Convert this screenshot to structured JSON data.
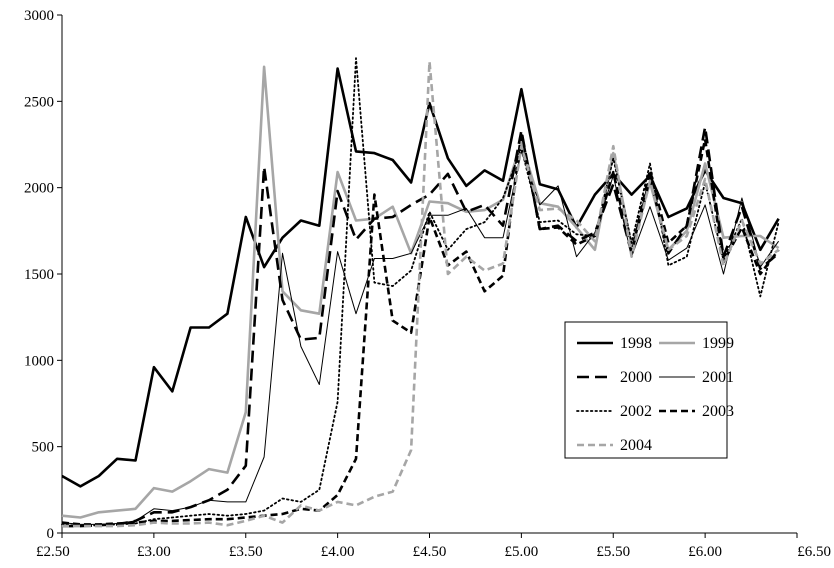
{
  "chart_data": {
    "type": "line",
    "title": "",
    "xlabel": "",
    "ylabel": "",
    "x": [
      2.5,
      2.6,
      2.7,
      2.8,
      2.9,
      3.0,
      3.1,
      3.2,
      3.3,
      3.4,
      3.5,
      3.6,
      3.7,
      3.8,
      3.9,
      4.0,
      4.1,
      4.2,
      4.3,
      4.4,
      4.5,
      4.6,
      4.7,
      4.8,
      4.9,
      5.0,
      5.1,
      5.2,
      5.3,
      5.4,
      5.5,
      5.6,
      5.7,
      5.8,
      5.9,
      6.0,
      6.1,
      6.2,
      6.3,
      6.4
    ],
    "xlim": [
      2.5,
      6.5
    ],
    "ylim": [
      0,
      3000
    ],
    "x_ticks": [
      2.5,
      3.0,
      3.5,
      4.0,
      4.5,
      5.0,
      5.5,
      6.0,
      6.5
    ],
    "x_tick_labels": [
      "£2.50",
      "£3.00",
      "£3.50",
      "£4.00",
      "£4.50",
      "£5.00",
      "£5.50",
      "£6.00",
      "£6.50"
    ],
    "y_ticks": [
      0,
      500,
      1000,
      1500,
      2000,
      2500,
      3000
    ],
    "y_tick_labels": [
      "0",
      "500",
      "1000",
      "1500",
      "2000",
      "2500",
      "3000"
    ],
    "grid": false,
    "legend_position": "right-center",
    "series": [
      {
        "name": "1998",
        "color": "#000000",
        "style": "solid-thick",
        "values": [
          330,
          270,
          330,
          430,
          420,
          960,
          820,
          1190,
          1190,
          1270,
          1830,
          1540,
          1710,
          1810,
          1780,
          2690,
          2210,
          2200,
          2160,
          2030,
          2490,
          2170,
          2010,
          2100,
          2040,
          2570,
          2020,
          1990,
          1770,
          1960,
          2080,
          1960,
          2070,
          1830,
          1880,
          2100,
          1940,
          1910,
          1640,
          1820
        ]
      },
      {
        "name": "1999",
        "color": "#a6a6a6",
        "style": "solid-thick",
        "values": [
          100,
          90,
          120,
          130,
          140,
          260,
          240,
          300,
          370,
          350,
          700,
          2700,
          1400,
          1290,
          1270,
          2090,
          1810,
          1820,
          1890,
          1620,
          1920,
          1910,
          1860,
          1870,
          1930,
          2260,
          1910,
          1890,
          1770,
          1640,
          2200,
          1660,
          2030,
          1640,
          1750,
          2140,
          1710,
          1720,
          1720,
          1650
        ]
      },
      {
        "name": "2000",
        "color": "#000000",
        "style": "long-dash",
        "values": [
          40,
          40,
          45,
          50,
          70,
          120,
          120,
          150,
          190,
          250,
          390,
          2120,
          1350,
          1120,
          1130,
          1980,
          1700,
          1820,
          1830,
          1900,
          1960,
          2080,
          1860,
          1900,
          1780,
          2330,
          1760,
          1780,
          1690,
          1740,
          2020,
          1620,
          2060,
          1620,
          1780,
          2350,
          1600,
          1890,
          1530,
          1620
        ]
      },
      {
        "name": "2001",
        "color": "#000000",
        "style": "solid-thin",
        "values": [
          60,
          50,
          50,
          55,
          70,
          140,
          130,
          150,
          190,
          180,
          180,
          440,
          1620,
          1080,
          860,
          1630,
          1270,
          1590,
          1590,
          1620,
          1840,
          1840,
          1880,
          1710,
          1710,
          2210,
          1900,
          2010,
          1600,
          1740,
          2070,
          1600,
          1890,
          1580,
          1650,
          1900,
          1500,
          1940,
          1540,
          1690
        ]
      },
      {
        "name": "2002",
        "color": "#000000",
        "style": "dotted",
        "values": [
          50,
          40,
          45,
          50,
          55,
          80,
          90,
          100,
          110,
          100,
          110,
          130,
          200,
          180,
          250,
          760,
          2750,
          1450,
          1430,
          1520,
          1860,
          1640,
          1760,
          1800,
          1940,
          2230,
          1800,
          1810,
          1730,
          1720,
          2170,
          1680,
          2140,
          1550,
          1600,
          2030,
          1580,
          1820,
          1370,
          1800
        ]
      },
      {
        "name": "2003",
        "color": "#000000",
        "style": "dash",
        "values": [
          60,
          50,
          50,
          55,
          60,
          70,
          70,
          75,
          80,
          80,
          90,
          100,
          110,
          140,
          130,
          220,
          430,
          1960,
          1230,
          1160,
          1830,
          1550,
          1630,
          1400,
          1490,
          2320,
          1760,
          1770,
          1670,
          1720,
          2090,
          1620,
          2100,
          1680,
          1780,
          2280,
          1570,
          1770,
          1500,
          1640
        ]
      },
      {
        "name": "2004",
        "color": "#a6a6a6",
        "style": "dash",
        "values": [
          40,
          40,
          40,
          40,
          45,
          60,
          55,
          55,
          60,
          45,
          70,
          100,
          60,
          160,
          130,
          180,
          160,
          210,
          240,
          480,
          2730,
          1500,
          1600,
          1520,
          1560,
          2240,
          1870,
          1880,
          1810,
          1690,
          2240,
          1600,
          2040,
          1640,
          1720,
          2050,
          1550,
          1810,
          1560,
          1640
        ]
      }
    ]
  }
}
